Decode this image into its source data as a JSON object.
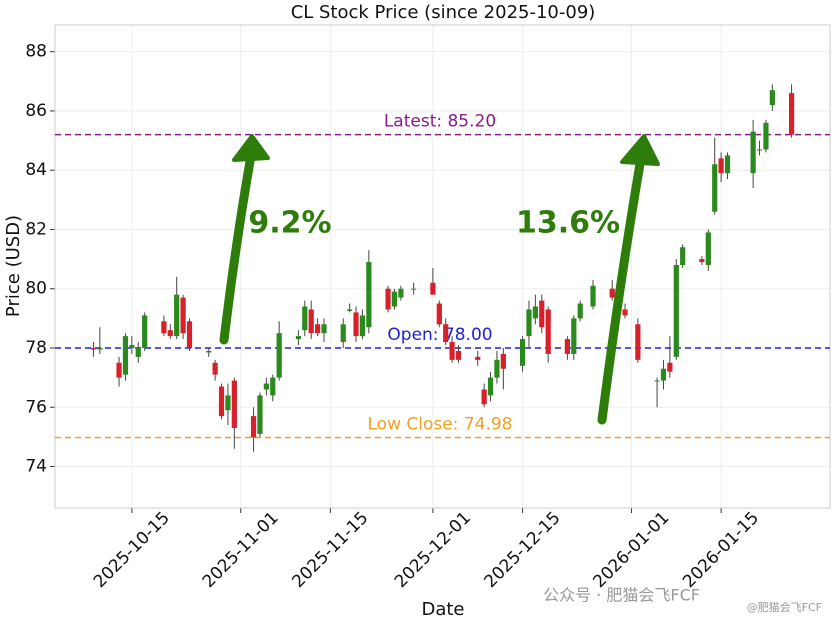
{
  "chart_data": {
    "type": "candlestick",
    "title": "CL Stock Price (since 2025-10-09)",
    "x_label": "Date",
    "y_label": "Price (USD)",
    "x": [
      "2025-10-09",
      "2025-10-10",
      "2025-10-13",
      "2025-10-14",
      "2025-10-15",
      "2025-10-16",
      "2025-10-17",
      "2025-10-20",
      "2025-10-21",
      "2025-10-22",
      "2025-10-23",
      "2025-10-24",
      "2025-10-27",
      "2025-10-28",
      "2025-10-29",
      "2025-10-30",
      "2025-10-31",
      "2025-11-03",
      "2025-11-04",
      "2025-11-05",
      "2025-11-06",
      "2025-11-07",
      "2025-11-10",
      "2025-11-11",
      "2025-11-12",
      "2025-11-13",
      "2025-11-14",
      "2025-11-17",
      "2025-11-18",
      "2025-11-19",
      "2025-11-20",
      "2025-11-21",
      "2025-11-24",
      "2025-11-25",
      "2025-11-26",
      "2025-11-28",
      "2025-12-01",
      "2025-12-02",
      "2025-12-03",
      "2025-12-04",
      "2025-12-05",
      "2025-12-08",
      "2025-12-09",
      "2025-12-10",
      "2025-12-11",
      "2025-12-12",
      "2025-12-15",
      "2025-12-16",
      "2025-12-17",
      "2025-12-18",
      "2025-12-19",
      "2025-12-22",
      "2025-12-23",
      "2025-12-24",
      "2025-12-26",
      "2025-12-29",
      "2025-12-30",
      "2025-12-31",
      "2026-01-02",
      "2026-01-05",
      "2026-01-06",
      "2026-01-07",
      "2026-01-08",
      "2026-01-09",
      "2026-01-12",
      "2026-01-13",
      "2026-01-14",
      "2026-01-15",
      "2026-01-16",
      "2026-01-20",
      "2026-01-21",
      "2026-01-22",
      "2026-01-23",
      "2026-01-26"
    ],
    "open": [
      78.0,
      77.95,
      77.5,
      77.1,
      78.0,
      77.7,
      78.0,
      78.9,
      78.6,
      78.4,
      79.7,
      78.9,
      77.85,
      77.5,
      76.7,
      75.9,
      76.9,
      75.7,
      75.1,
      76.6,
      76.4,
      77.0,
      78.3,
      78.6,
      79.3,
      78.8,
      78.5,
      78.2,
      79.25,
      79.2,
      78.4,
      78.7,
      80.0,
      79.4,
      79.7,
      80.0,
      80.2,
      79.5,
      78.8,
      78.2,
      77.9,
      77.7,
      76.6,
      76.4,
      77.0,
      77.8,
      77.4,
      78.4,
      79.0,
      79.6,
      79.3,
      78.3,
      77.8,
      79.0,
      79.4,
      80.0,
      79.6,
      79.3,
      78.8,
      76.9,
      76.9,
      77.5,
      77.7,
      80.8,
      81.0,
      80.8,
      82.6,
      84.4,
      83.9,
      83.9,
      84.7,
      84.7,
      86.2,
      86.6
    ],
    "high": [
      78.2,
      78.7,
      77.7,
      78.5,
      78.4,
      78.2,
      79.2,
      79.1,
      78.8,
      80.4,
      79.8,
      79.0,
      78.0,
      77.6,
      76.8,
      76.8,
      77.0,
      76.0,
      76.5,
      77.0,
      77.1,
      78.9,
      78.6,
      79.6,
      79.6,
      79.0,
      79.0,
      79.0,
      79.5,
      79.4,
      79.3,
      81.3,
      80.1,
      80.0,
      80.1,
      80.2,
      80.7,
      79.6,
      79.0,
      78.4,
      78.1,
      77.9,
      76.8,
      77.2,
      77.9,
      78.0,
      78.4,
      79.6,
      79.8,
      79.8,
      79.4,
      78.4,
      79.1,
      79.6,
      80.3,
      80.3,
      79.8,
      79.5,
      79.0,
      77.0,
      77.6,
      78.4,
      81.0,
      81.5,
      81.1,
      82.0,
      85.1,
      84.6,
      84.6,
      85.7,
      85.0,
      85.7,
      86.9,
      86.9
    ],
    "low": [
      77.7,
      77.8,
      76.7,
      76.9,
      77.8,
      77.5,
      77.9,
      78.4,
      78.3,
      78.3,
      78.3,
      77.9,
      77.7,
      76.9,
      75.6,
      75.4,
      74.6,
      74.5,
      75.0,
      76.4,
      76.2,
      76.9,
      78.1,
      78.4,
      78.3,
      78.4,
      78.2,
      78.0,
      79.2,
      78.2,
      78.3,
      78.5,
      79.2,
      79.3,
      79.6,
      79.8,
      79.8,
      78.7,
      78.1,
      77.5,
      77.5,
      77.4,
      76.0,
      76.2,
      76.8,
      76.6,
      77.2,
      78.0,
      78.8,
      78.5,
      77.5,
      77.6,
      77.6,
      78.9,
      79.3,
      79.6,
      79.3,
      79.0,
      77.5,
      76.0,
      76.6,
      77.0,
      77.6,
      80.7,
      80.8,
      80.6,
      82.5,
      83.6,
      83.7,
      83.4,
      84.5,
      84.6,
      86.0,
      85.1
    ],
    "close": [
      77.95,
      78.0,
      77.0,
      78.4,
      78.1,
      78.0,
      79.1,
      78.5,
      78.4,
      79.8,
      78.5,
      78.0,
      77.9,
      77.1,
      75.7,
      76.4,
      75.3,
      74.98,
      76.4,
      76.8,
      77.0,
      78.5,
      78.4,
      79.4,
      78.5,
      78.5,
      78.8,
      78.8,
      79.3,
      78.4,
      79.1,
      80.9,
      79.3,
      79.9,
      80.0,
      80.0,
      79.8,
      78.8,
      78.2,
      77.6,
      77.6,
      77.6,
      76.1,
      77.0,
      77.6,
      77.3,
      78.3,
      79.3,
      79.4,
      78.7,
      77.8,
      77.8,
      79.0,
      79.5,
      80.1,
      79.7,
      79.7,
      79.1,
      77.6,
      76.9,
      77.3,
      77.2,
      80.8,
      81.4,
      80.9,
      81.9,
      84.2,
      83.9,
      84.5,
      85.3,
      84.7,
      85.6,
      86.7,
      85.2
    ],
    "up_color": "#2a8a1e",
    "down_color": "#d6202a",
    "xlim": [
      "2025-10-03",
      "2026-02-01"
    ],
    "xticks": [
      "2025-10-15",
      "2025-11-01",
      "2025-11-15",
      "2025-12-01",
      "2025-12-15",
      "2026-01-01",
      "2026-01-15"
    ],
    "ylim": [
      72.6,
      88.9
    ],
    "yticks": [
      74,
      76,
      78,
      80,
      82,
      84,
      86,
      88
    ],
    "grid": true,
    "reference_lines": [
      {
        "label": "Latest: 85.20",
        "value": 85.2,
        "color": "#8b1a8b"
      },
      {
        "label": "Open: 78.00",
        "value": 78.0,
        "color": "#1f1fd6"
      },
      {
        "label": "Low Close: 74.98",
        "value": 74.98,
        "color": "#f0a020"
      }
    ],
    "arrows": [
      {
        "label": "9.2%"
      },
      {
        "label": "13.6%"
      }
    ],
    "arrow_color": "#2e7d0a",
    "watermark": [
      "公众号 · 肥猫会飞FCF",
      "@肥猫会飞FCF"
    ]
  }
}
